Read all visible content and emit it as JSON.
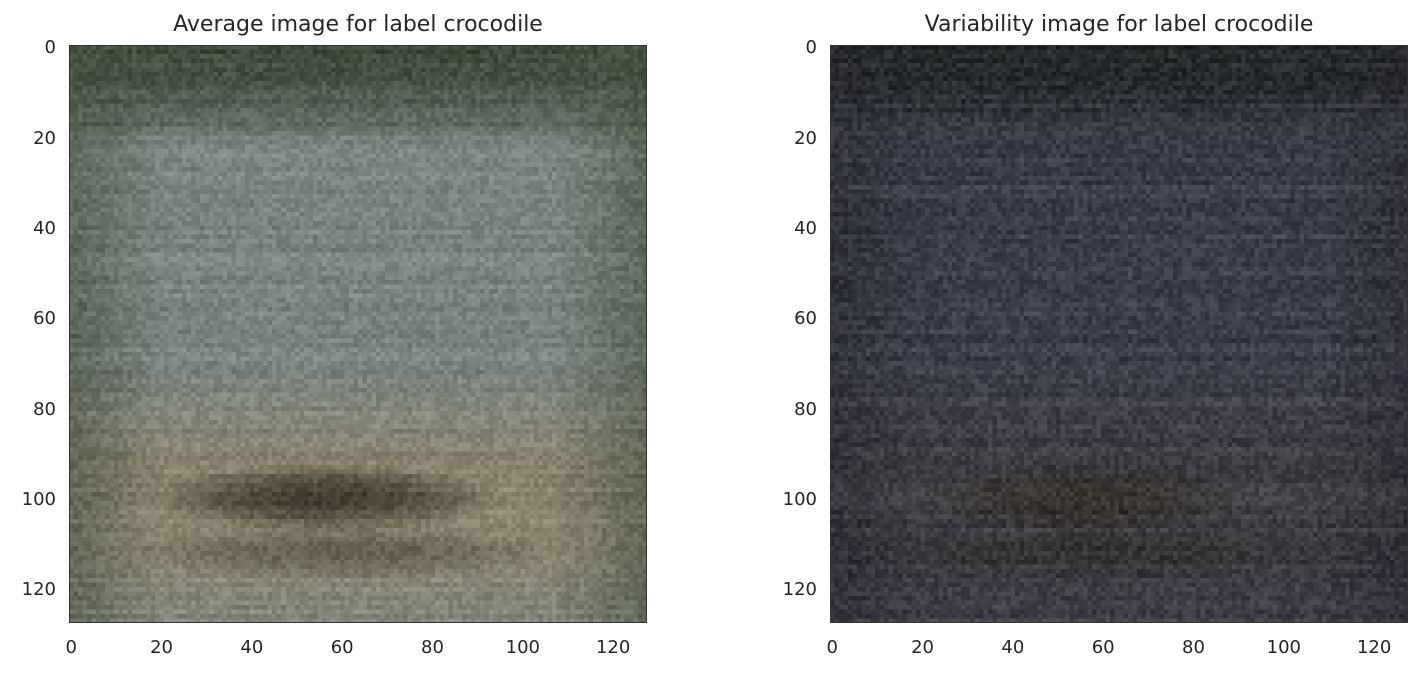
{
  "chart_data": [
    {
      "type": "heatmap",
      "title": "Average image for label crocodile",
      "xlabel": "",
      "ylabel": "",
      "xlim": [
        0,
        127
      ],
      "ylim": [
        127,
        0
      ],
      "xticks": [
        "0",
        "20",
        "40",
        "60",
        "80",
        "100",
        "120"
      ],
      "yticks": [
        "0",
        "20",
        "40",
        "60",
        "80",
        "100",
        "120"
      ],
      "xtick_values": [
        0,
        20,
        40,
        60,
        80,
        100,
        120
      ],
      "ytick_values": [
        0,
        20,
        40,
        60,
        80,
        100,
        120
      ],
      "grid": false,
      "image_size": [
        128,
        128
      ],
      "colors": {
        "top": "#3f4a3b",
        "middle": "#7a8580",
        "lower_band": "#8a8470",
        "shadow": "#3a3628",
        "edge": "#4b5545"
      }
    },
    {
      "type": "heatmap",
      "title": "Variability image for label crocodile",
      "xlabel": "",
      "ylabel": "",
      "xlim": [
        0,
        127
      ],
      "ylim": [
        127,
        0
      ],
      "xticks": [
        "0",
        "20",
        "40",
        "60",
        "80",
        "100",
        "120"
      ],
      "yticks": [
        "0",
        "20",
        "40",
        "60",
        "80",
        "100",
        "120"
      ],
      "xtick_values": [
        0,
        20,
        40,
        60,
        80,
        100,
        120
      ],
      "ytick_values": [
        0,
        20,
        40,
        60,
        80,
        100,
        120
      ],
      "grid": false,
      "image_size": [
        128,
        128
      ],
      "colors": {
        "top": "#262a2b",
        "middle": "#3c3f4a",
        "lower_band": "#403e44",
        "shadow": "#302c26",
        "edge": "#2b2b33"
      }
    }
  ]
}
